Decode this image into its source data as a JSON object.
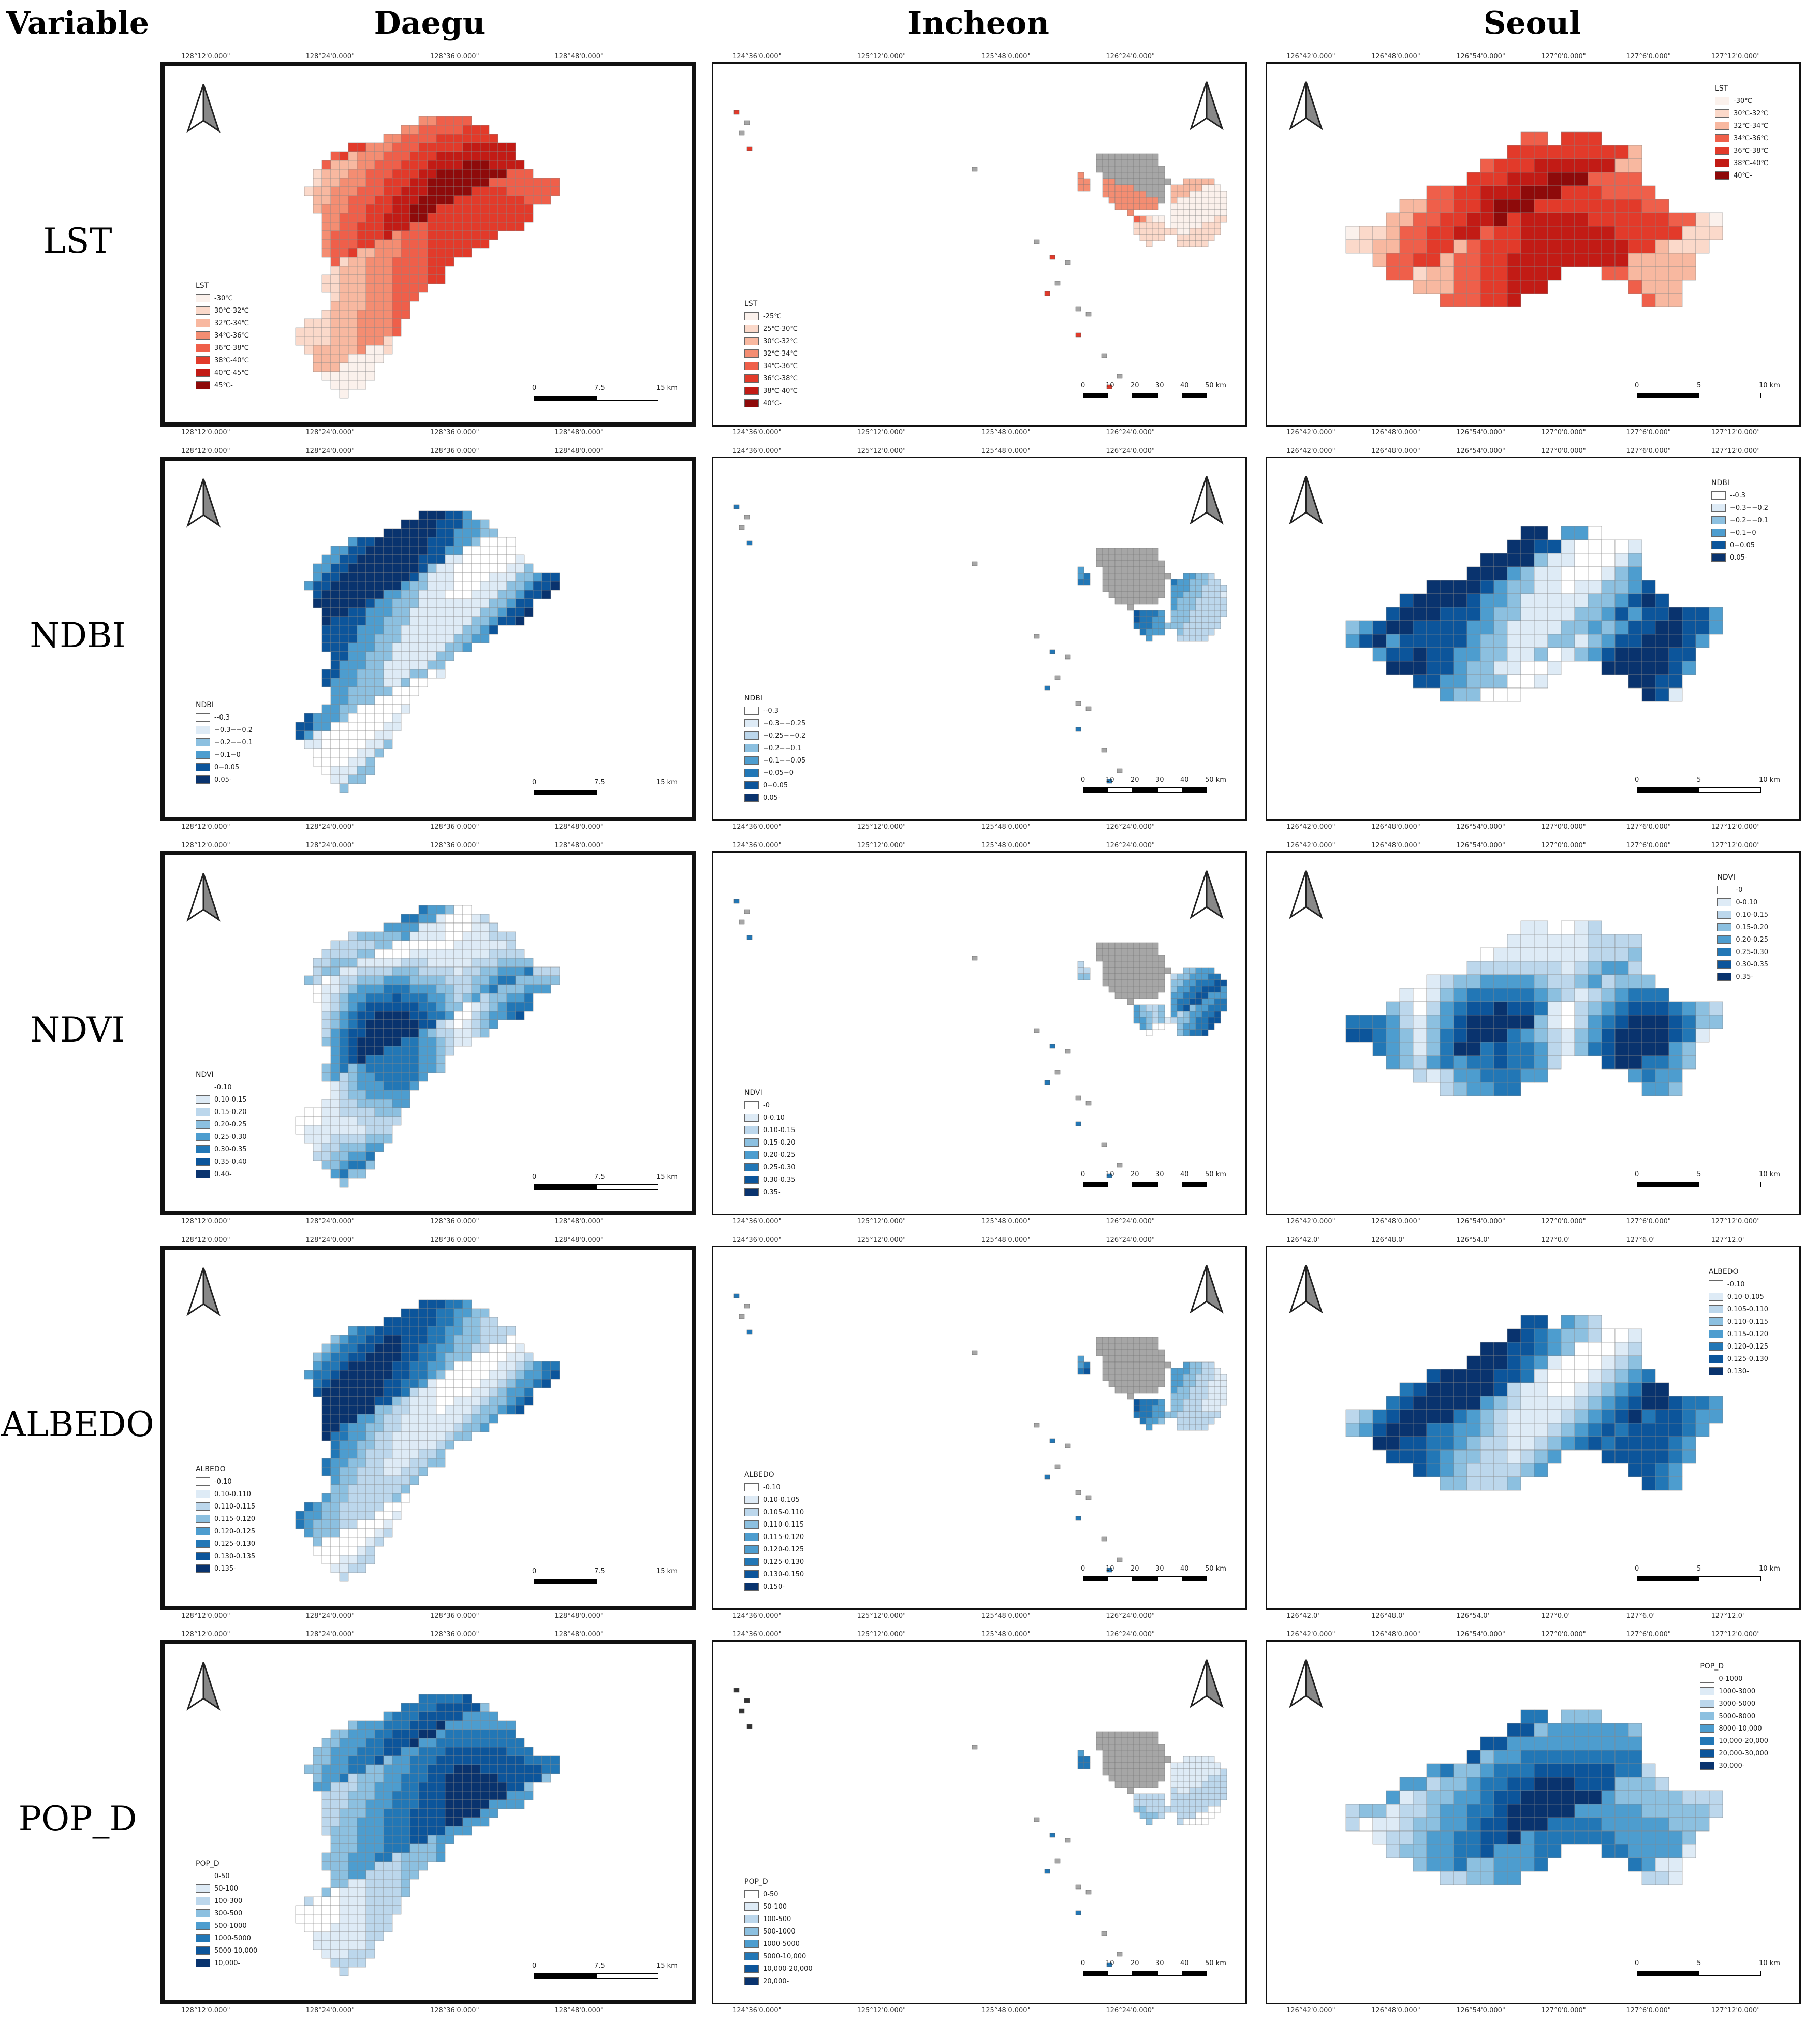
{
  "headers": {
    "variable": "Variable",
    "cities": [
      "Daegu",
      "Incheon",
      "Seoul"
    ]
  },
  "rows": [
    {
      "label": "LST",
      "palette": "red",
      "legends": [
        {
          "title": "LST",
          "items": [
            "-30℃",
            "30℃-32℃",
            "32℃-34℃",
            "34℃-36℃",
            "36℃-38℃",
            "38℃-40℃",
            "40℃-45℃",
            "45℃-"
          ]
        },
        {
          "title": "LST",
          "items": [
            "-25℃",
            "25℃-30℃",
            "30℃-32℃",
            "32℃-34℃",
            "34℃-36℃",
            "36℃-38℃",
            "38℃-40℃",
            "40℃-"
          ]
        },
        {
          "title": "LST",
          "items": [
            "-30℃",
            "30℃-32℃",
            "32℃-34℃",
            "34℃-36℃",
            "36℃-38℃",
            "38℃-40℃",
            "40℃-"
          ]
        }
      ]
    },
    {
      "label": "NDBI",
      "palette": "blue",
      "legends": [
        {
          "title": "NDBI",
          "items": [
            "--0.3",
            "−0.3−−0.2",
            "−0.2−−0.1",
            "−0.1−0",
            "0−0.05",
            "0.05-"
          ]
        },
        {
          "title": "NDBI",
          "items": [
            "--0.3",
            "−0.3−−0.25",
            "−0.25−−0.2",
            "−0.2−−0.1",
            "−0.1−−0.05",
            "−0.05−0",
            "0−0.05",
            "0.05-"
          ]
        },
        {
          "title": "NDBI",
          "items": [
            "--0.3",
            "−0.3−−0.2",
            "−0.2−−0.1",
            "−0.1−0",
            "0−0.05",
            "0.05-"
          ]
        }
      ]
    },
    {
      "label": "NDVI",
      "palette": "blue",
      "legends": [
        {
          "title": "NDVI",
          "items": [
            "-0.10",
            "0.10-0.15",
            "0.15-0.20",
            "0.20-0.25",
            "0.25-0.30",
            "0.30-0.35",
            "0.35-0.40",
            "0.40-"
          ]
        },
        {
          "title": "NDVI",
          "items": [
            "-0",
            "0-0.10",
            "0.10-0.15",
            "0.15-0.20",
            "0.20-0.25",
            "0.25-0.30",
            "0.30-0.35",
            "0.35-"
          ]
        },
        {
          "title": "NDVI",
          "items": [
            "-0",
            "0-0.10",
            "0.10-0.15",
            "0.15-0.20",
            "0.20-0.25",
            "0.25-0.30",
            "0.30-0.35",
            "0.35-"
          ]
        }
      ]
    },
    {
      "label": "ALBEDO",
      "palette": "blue",
      "legends": [
        {
          "title": "ALBEDO",
          "items": [
            "-0.10",
            "0.10-0.110",
            "0.110-0.115",
            "0.115-0.120",
            "0.120-0.125",
            "0.125-0.130",
            "0.130-0.135",
            "0.135-"
          ]
        },
        {
          "title": "ALBEDO",
          "items": [
            "-0.10",
            "0.10-0.105",
            "0.105-0.110",
            "0.110-0.115",
            "0.115-0.120",
            "0.120-0.125",
            "0.125-0.130",
            "0.130-0.150",
            "0.150-"
          ]
        },
        {
          "title": "ALBEDO",
          "items": [
            "-0.10",
            "0.10-0.105",
            "0.105-0.110",
            "0.110-0.115",
            "0.115-0.120",
            "0.120-0.125",
            "0.125-0.130",
            "0.130-"
          ]
        }
      ]
    },
    {
      "label": "POP_D",
      "palette": "blue",
      "legends": [
        {
          "title": "POP_D",
          "items": [
            "0-50",
            "50-100",
            "100-300",
            "300-500",
            "500-1000",
            "1000-5000",
            "5000-10,000",
            "10,000-"
          ]
        },
        {
          "title": "POP_D",
          "items": [
            "0-50",
            "50-100",
            "100-500",
            "500-1000",
            "1000-5000",
            "5000-10,000",
            "10,000-20,000",
            "20,000-"
          ]
        },
        {
          "title": "POP_D",
          "items": [
            "0-1000",
            "1000-3000",
            "3000-5000",
            "5000-8000",
            "8000-10,000",
            "10,000-20,000",
            "20,000-30,000",
            "30,000-"
          ]
        }
      ]
    }
  ],
  "scalebars": [
    {
      "ticks": [
        "0",
        "7.5",
        "15 km"
      ]
    },
    {
      "ticks": [
        "0",
        "10",
        "20",
        "30",
        "40",
        "50 km"
      ]
    },
    {
      "ticks": [
        "0",
        "5",
        "10 km"
      ]
    }
  ],
  "coords": {
    "daegu": {
      "top": [
        "128°12'0.000\"",
        "128°24'0.000\"",
        "128°36'0.000\"",
        "128°48'0.000\""
      ]
    },
    "incheon": {
      "top": [
        "124°36'0.000\"",
        "125°12'0.000\"",
        "125°48'0.000\"",
        "126°24'0.000\""
      ]
    },
    "seoul": {
      "top": [
        "126°42'0.000\"",
        "126°48'0.000\"",
        "126°54'0.000\"",
        "127°0'0.000\"",
        "127°6'0.000\"",
        "127°12'0.000\""
      ]
    },
    "seoul_albedo": {
      "top": [
        "126°42.0'",
        "126°48.0'",
        "126°54.0'",
        "127°0.0'",
        "127°6.0'",
        "127°12.0'"
      ]
    }
  },
  "colors": {
    "red": [
      "#fbf1ec",
      "#fbd9ca",
      "#f8b8a0",
      "#f48d72",
      "#ef5f4a",
      "#e23a2a",
      "#c21b15",
      "#8e0a0a"
    ],
    "blue": [
      "#ffffff",
      "#deebf6",
      "#bcd7ec",
      "#8cc0e0",
      "#4d9dcf",
      "#2277b6",
      "#0c559b",
      "#09336e"
    ],
    "grey": "#a6a6a6",
    "dark": "#333333"
  }
}
